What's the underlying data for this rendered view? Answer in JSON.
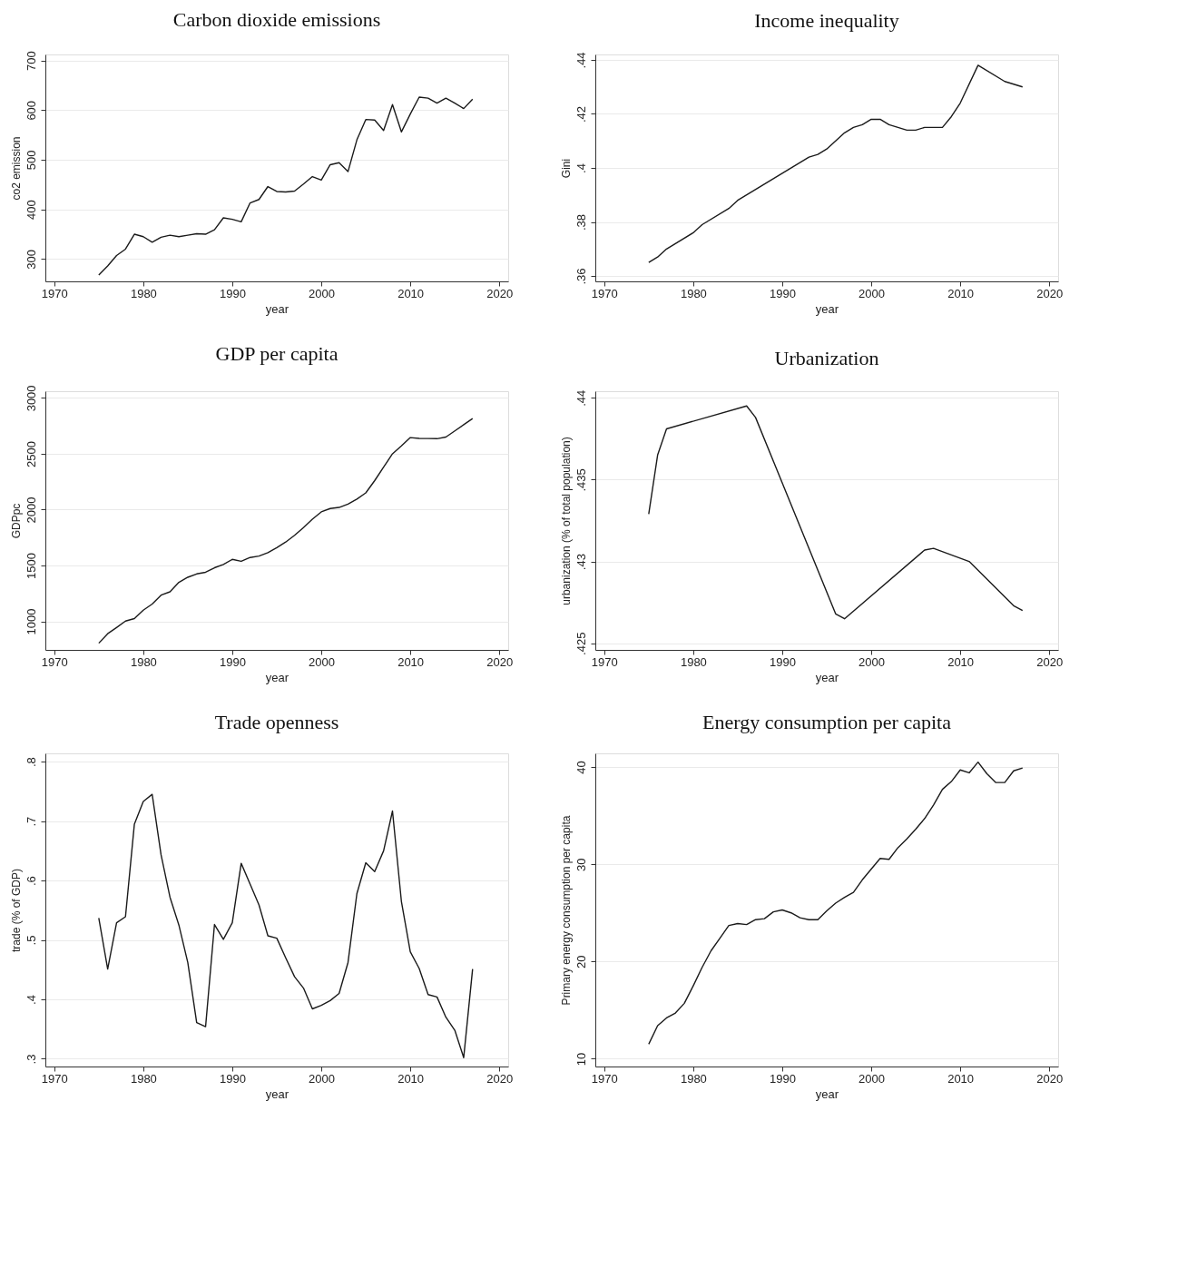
{
  "chart_data": [
    {
      "type": "line",
      "title": "Carbon dioxide emissions",
      "xlabel": "year",
      "ylabel": "co2 emission",
      "color": "#1a1a1a",
      "grid": "y",
      "line_style": "solid",
      "x": [
        1975,
        1976,
        1977,
        1978,
        1979,
        1980,
        1981,
        1982,
        1983,
        1984,
        1985,
        1986,
        1987,
        1988,
        1989,
        1990,
        1991,
        1992,
        1993,
        1994,
        1995,
        1996,
        1997,
        1998,
        1999,
        2000,
        2001,
        2002,
        2003,
        2004,
        2005,
        2006,
        2007,
        2008,
        2009,
        2010,
        2011,
        2012,
        2013,
        2014,
        2015,
        2016,
        2017
      ],
      "values": [
        268,
        286,
        307,
        320,
        350,
        345,
        334,
        344,
        348,
        345,
        348,
        351,
        350,
        359,
        383,
        380,
        375,
        413,
        420,
        446,
        436,
        435,
        437,
        451,
        466,
        459,
        490,
        494,
        476,
        540,
        581,
        580,
        559,
        611,
        556,
        592,
        626,
        624,
        614,
        624,
        614,
        603,
        622
      ],
      "xlim": [
        1969,
        2021
      ],
      "xticks": [
        1970,
        1980,
        1990,
        2000,
        2010,
        2020
      ],
      "ylim": [
        255,
        712
      ],
      "yticks": [
        300,
        400,
        500,
        600,
        700
      ]
    },
    {
      "type": "line",
      "title": "Income inequality",
      "xlabel": "year",
      "ylabel": "Gini",
      "color": "#1a1a1a",
      "grid": "y",
      "line_style": "solid",
      "x": [
        1975,
        1976,
        1977,
        1980,
        1981,
        1984,
        1985,
        1993,
        1994,
        1995,
        1997,
        1998,
        1999,
        2000,
        2001,
        2002,
        2004,
        2005,
        2006,
        2008,
        2009,
        2010,
        2012,
        2015,
        2017
      ],
      "values": [
        0.365,
        0.367,
        0.37,
        0.376,
        0.379,
        0.385,
        0.388,
        0.404,
        0.405,
        0.407,
        0.413,
        0.415,
        0.416,
        0.418,
        0.418,
        0.416,
        0.414,
        0.414,
        0.415,
        0.415,
        0.419,
        0.424,
        0.438,
        0.432,
        0.43
      ],
      "xlim": [
        1969,
        2021
      ],
      "xticks": [
        1970,
        1980,
        1990,
        2000,
        2010,
        2020
      ],
      "ylim": [
        0.358,
        0.442
      ],
      "yticks": [
        {
          "value": 0.36,
          "label": ".36"
        },
        {
          "value": 0.38,
          "label": ".38"
        },
        {
          "value": 0.4,
          "label": ".4"
        },
        {
          "value": 0.42,
          "label": ".42"
        },
        {
          "value": 0.44,
          "label": ".44"
        }
      ]
    },
    {
      "type": "line",
      "title": "GDP per capita",
      "xlabel": "year",
      "ylabel": "GDPpc",
      "color": "#1a1a1a",
      "grid": "y",
      "line_style": "solid",
      "x": [
        1975,
        1976,
        1977,
        1978,
        1979,
        1980,
        1981,
        1982,
        1983,
        1984,
        1985,
        1986,
        1987,
        1988,
        1989,
        1990,
        1991,
        1992,
        1993,
        1994,
        1995,
        1996,
        1997,
        1998,
        1999,
        2000,
        2001,
        2002,
        2003,
        2004,
        2005,
        2006,
        2007,
        2008,
        2009,
        2010,
        2011,
        2012,
        2013,
        2014,
        2015,
        2016,
        2017
      ],
      "values": [
        805,
        890,
        945,
        1003,
        1025,
        1100,
        1155,
        1235,
        1265,
        1350,
        1395,
        1425,
        1440,
        1480,
        1510,
        1555,
        1538,
        1572,
        1585,
        1615,
        1660,
        1710,
        1770,
        1840,
        1915,
        1980,
        2010,
        2020,
        2050,
        2095,
        2150,
        2260,
        2380,
        2500,
        2570,
        2645,
        2638,
        2637,
        2635,
        2650,
        2705,
        2760,
        2815
      ],
      "xlim": [
        1969,
        2021
      ],
      "xticks": [
        1970,
        1980,
        1990,
        2000,
        2010,
        2020
      ],
      "ylim": [
        745,
        3060
      ],
      "yticks": [
        1000,
        1500,
        2000,
        2500,
        3000
      ]
    },
    {
      "type": "line",
      "title": "Urbanization",
      "xlabel": "year",
      "ylabel": "urbanization (% of total population)",
      "color": "#1a1a1a",
      "grid": "y",
      "line_style": "solid",
      "x": [
        1975,
        1976,
        1977,
        1986,
        1987,
        1996,
        1997,
        2006,
        2007,
        2011,
        2016,
        2017
      ],
      "values": [
        0.4329,
        0.4365,
        0.4381,
        0.4395,
        0.4388,
        0.4268,
        0.4265,
        0.4307,
        0.4308,
        0.43,
        0.4273,
        0.427
      ],
      "xlim": [
        1969,
        2021
      ],
      "xticks": [
        1970,
        1980,
        1990,
        2000,
        2010,
        2020
      ],
      "ylim": [
        0.4246,
        0.4404
      ],
      "yticks": [
        {
          "value": 0.425,
          "label": ".425"
        },
        {
          "value": 0.43,
          "label": ".43"
        },
        {
          "value": 0.435,
          "label": ".435"
        },
        {
          "value": 0.44,
          "label": ".44"
        }
      ]
    },
    {
      "type": "line",
      "title": "Trade openness",
      "xlabel": "year",
      "ylabel": "trade (% of GDP)",
      "color": "#1a1a1a",
      "grid": "y",
      "line_style": "solid",
      "x": [
        1975,
        1976,
        1977,
        1978,
        1979,
        1980,
        1981,
        1982,
        1983,
        1984,
        1985,
        1986,
        1987,
        1988,
        1989,
        1990,
        1991,
        1992,
        1993,
        1994,
        1995,
        1996,
        1997,
        1998,
        1999,
        2000,
        2001,
        2002,
        2003,
        2004,
        2005,
        2006,
        2007,
        2008,
        2009,
        2010,
        2011,
        2012,
        2013,
        2014,
        2015,
        2016,
        2017
      ],
      "values": [
        0.537,
        0.451,
        0.529,
        0.539,
        0.695,
        0.733,
        0.745,
        0.643,
        0.572,
        0.525,
        0.462,
        0.361,
        0.354,
        0.526,
        0.501,
        0.529,
        0.629,
        0.594,
        0.559,
        0.507,
        0.503,
        0.47,
        0.438,
        0.419,
        0.384,
        0.39,
        0.398,
        0.41,
        0.462,
        0.578,
        0.63,
        0.615,
        0.65,
        0.717,
        0.565,
        0.48,
        0.452,
        0.408,
        0.404,
        0.37,
        0.348,
        0.302,
        0.451
      ],
      "xlim": [
        1969,
        2021
      ],
      "xticks": [
        1970,
        1980,
        1990,
        2000,
        2010,
        2020
      ],
      "ylim": [
        0.287,
        0.814
      ],
      "yticks": [
        {
          "value": 0.3,
          "label": ".3"
        },
        {
          "value": 0.4,
          "label": ".4"
        },
        {
          "value": 0.5,
          "label": ".5"
        },
        {
          "value": 0.6,
          "label": ".6"
        },
        {
          "value": 0.7,
          "label": ".7"
        },
        {
          "value": 0.8,
          "label": ".8"
        }
      ]
    },
    {
      "type": "line",
      "title": "Energy consumption per capita",
      "xlabel": "year",
      "ylabel": "Primary energy consumption per capita",
      "color": "#1a1a1a",
      "grid": "y",
      "line_style": "solid",
      "x": [
        1975,
        1976,
        1977,
        1978,
        1979,
        1980,
        1981,
        1982,
        1983,
        1984,
        1985,
        1986,
        1987,
        1988,
        1989,
        1990,
        1991,
        1992,
        1993,
        1994,
        1995,
        1996,
        1997,
        1998,
        1999,
        2000,
        2001,
        2002,
        2003,
        2004,
        2005,
        2006,
        2007,
        2008,
        2009,
        2010,
        2011,
        2012,
        2013,
        2014,
        2015,
        2016,
        2017
      ],
      "values": [
        11.5,
        13.4,
        14.2,
        14.7,
        15.7,
        17.5,
        19.4,
        21.1,
        22.4,
        23.7,
        23.9,
        23.8,
        24.3,
        24.4,
        25.1,
        25.3,
        25.0,
        24.5,
        24.3,
        24.3,
        25.2,
        26.0,
        26.6,
        27.1,
        28.4,
        29.5,
        30.6,
        30.5,
        31.7,
        32.6,
        33.6,
        34.7,
        36.1,
        37.7,
        38.5,
        39.7,
        39.4,
        40.5,
        39.3,
        38.4,
        38.4,
        39.6,
        39.9
      ],
      "xlim": [
        1969,
        2021
      ],
      "xticks": [
        1970,
        1980,
        1990,
        2000,
        2010,
        2020
      ],
      "ylim": [
        9.2,
        41.4
      ],
      "yticks": [
        10,
        20,
        30,
        40
      ]
    }
  ]
}
